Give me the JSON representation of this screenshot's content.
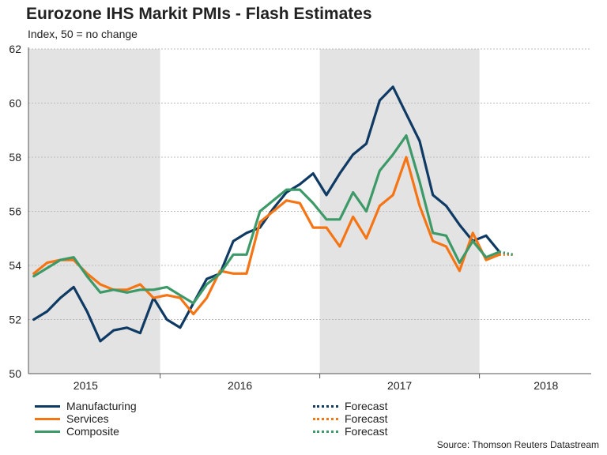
{
  "title": "Eurozone IHS Markit PMIs - Flash Estimates",
  "subtitle": "Index, 50 = no change",
  "source": "Source: Thomson Reuters Datastream",
  "colors": {
    "manufacturing": "#0f3a63",
    "services": "#f57414",
    "composite": "#3d9a68",
    "shade": "#e3e3e3",
    "grid": "#bcbcbc"
  },
  "legend": {
    "manufacturing": "Manufacturing",
    "services": "Services",
    "composite": "Composite",
    "forecast_manufacturing": "Forecast",
    "forecast_services": "Forecast",
    "forecast_composite": "Forecast"
  },
  "chart_data": {
    "type": "line",
    "title": "Eurozone IHS Markit PMIs - Flash Estimates",
    "ylabel": "Index, 50 = no change",
    "ylim": [
      50,
      62
    ],
    "yticks": [
      50,
      52,
      54,
      56,
      58,
      60,
      62
    ],
    "x_range": [
      -0.4,
      41.9
    ],
    "x_start": "2015-03",
    "year_labels": [
      {
        "label": "2015",
        "x": 3.9
      },
      {
        "label": "2016",
        "x": 15.5
      },
      {
        "label": "2017",
        "x": 27.5
      },
      {
        "label": "2018",
        "x": 38.5
      }
    ],
    "year_boundaries": [
      9.5,
      21.5,
      33.5
    ],
    "shaded_ranges": [
      [
        -0.4,
        9.5
      ],
      [
        21.5,
        33.5
      ]
    ],
    "series": [
      {
        "name": "Manufacturing",
        "color_key": "manufacturing",
        "values": [
          52.0,
          52.3,
          52.8,
          53.2,
          52.3,
          51.2,
          51.6,
          51.7,
          51.5,
          52.8,
          52.0,
          51.7,
          52.6,
          53.5,
          53.7,
          54.9,
          55.2,
          55.4,
          56.1,
          56.7,
          57.0,
          57.4,
          56.6,
          57.4,
          58.1,
          58.5,
          60.1,
          60.6,
          59.6,
          58.6,
          56.6,
          56.2,
          55.5,
          54.9,
          55.1,
          54.5
        ],
        "forecast": [
          54.5,
          54.4
        ]
      },
      {
        "name": "Services",
        "color_key": "services",
        "values": [
          53.7,
          54.1,
          54.2,
          54.2,
          53.7,
          53.3,
          53.1,
          53.1,
          53.3,
          52.8,
          52.9,
          52.8,
          52.2,
          52.8,
          53.8,
          53.7,
          53.7,
          55.6,
          56.0,
          56.4,
          56.3,
          55.4,
          55.4,
          54.7,
          55.8,
          55.0,
          56.2,
          56.6,
          58.0,
          56.2,
          54.9,
          54.7,
          53.8,
          55.2,
          54.2,
          54.4
        ],
        "forecast": [
          54.4,
          54.4
        ]
      },
      {
        "name": "Composite",
        "color_key": "composite",
        "values": [
          53.6,
          53.9,
          54.2,
          54.3,
          53.6,
          53.0,
          53.1,
          53.0,
          53.1,
          53.1,
          53.2,
          52.9,
          52.6,
          53.3,
          53.7,
          54.4,
          54.4,
          56.0,
          56.4,
          56.8,
          56.8,
          56.3,
          55.7,
          55.7,
          56.7,
          56.0,
          57.5,
          58.1,
          58.8,
          57.1,
          55.2,
          55.1,
          54.1,
          54.9,
          54.3,
          54.5
        ],
        "forecast": [
          54.5,
          54.4
        ]
      }
    ]
  }
}
